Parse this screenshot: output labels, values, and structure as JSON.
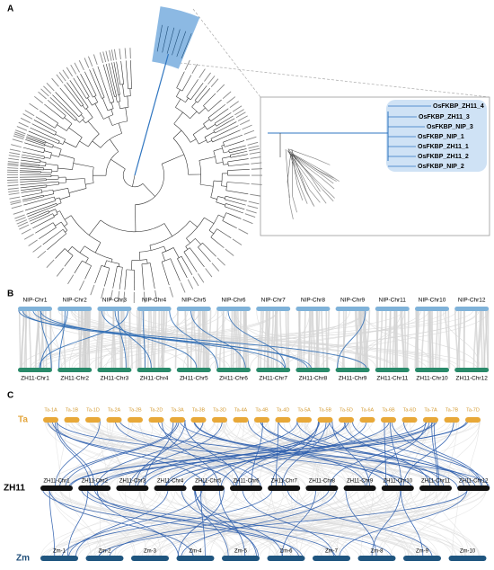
{
  "panels": {
    "A": {
      "label": "A",
      "zoom_labels": [
        "OsFKBP_ZH11_4",
        "OsFKBP_ZH11_3",
        "OsFKBP_NIP_3",
        "OsFKBP_NIP_1",
        "OsFKBP_ZH11_1",
        "OsFKBP_ZH11_2",
        "OsFKBP_NIP_2"
      ]
    },
    "B": {
      "label": "B",
      "top": [
        "NIP-Chr1",
        "NIP-Chr2",
        "NIP-Chr3",
        "NIP-Chr4",
        "NIP-Chr5",
        "NIP-Chr6",
        "NIP-Chr7",
        "NIP-Chr8",
        "NIP-Chr9",
        "NIP-Chr11",
        "NIP-Chr10",
        "NIP-Chr12"
      ],
      "bottom": [
        "ZH11-Chr1",
        "ZH11-Chr2",
        "ZH11-Chr3",
        "ZH11-Chr4",
        "ZH11-Chr5",
        "ZH11-Chr6",
        "ZH11-Chr7",
        "ZH11-Chr8",
        "ZH11-Chr9",
        "ZH11-Chr11",
        "ZH11-Chr10",
        "ZH11-Chr12"
      ]
    },
    "C": {
      "label": "C",
      "genomes": [
        "Ta",
        "ZH11",
        "Zm"
      ],
      "ta": [
        "Ta-1A",
        "Ta-1B",
        "Ta-1D",
        "Ta-2A",
        "Ta-2B",
        "Ta-2D",
        "Ta-3A",
        "Ta-3B",
        "Ta-3D",
        "Ta-4A",
        "Ta-4B",
        "Ta-4D",
        "Ta-5A",
        "Ta-5B",
        "Ta-5D",
        "Ta-6A",
        "Ta-6B",
        "Ta-6D",
        "Ta-7A",
        "Ta-7B",
        "Ta-7D"
      ],
      "zh11": [
        "ZH11-Chr1",
        "ZH11-Chr2",
        "ZH11-Chr3",
        "ZH11-Chr4",
        "ZH11-Chr5",
        "ZH11-Chr6",
        "ZH11-Chr7",
        "ZH11-Chr8",
        "ZH11-Chr9",
        "ZH11-Chr10",
        "ZH11-Chr11",
        "ZH11-Chr12"
      ],
      "zm": [
        "Zm-1",
        "Zm-2",
        "Zm-3",
        "Zm-4",
        "Zm-5",
        "Zm-6",
        "Zm-7",
        "Zm-8",
        "Zm-9",
        "Zm-10"
      ]
    }
  }
}
